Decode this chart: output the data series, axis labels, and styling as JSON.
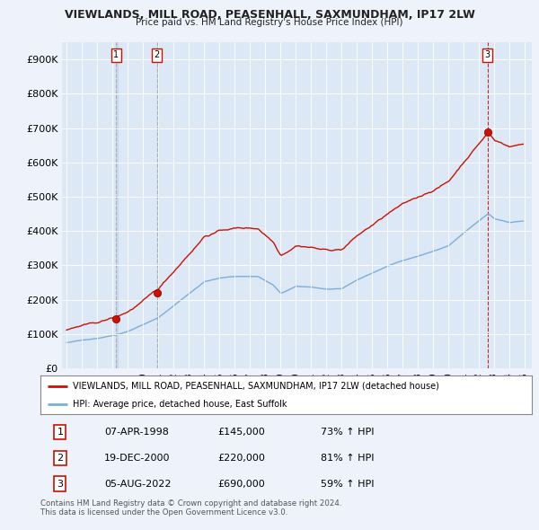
{
  "title": "VIEWLANDS, MILL ROAD, PEASENHALL, SAXMUNDHAM, IP17 2LW",
  "subtitle": "Price paid vs. HM Land Registry's House Price Index (HPI)",
  "background_color": "#eef2fa",
  "plot_bg_color": "#dce8f5",
  "ylim": [
    0,
    950000
  ],
  "yticks": [
    0,
    100000,
    200000,
    300000,
    400000,
    500000,
    600000,
    700000,
    800000,
    900000
  ],
  "ytick_labels": [
    "£0",
    "£100K",
    "£200K",
    "£300K",
    "£400K",
    "£500K",
    "£600K",
    "£700K",
    "£800K",
    "£900K"
  ],
  "sale_prices": [
    145000,
    220000,
    690000
  ],
  "sale_labels": [
    "1",
    "2",
    "3"
  ],
  "hpi_color": "#7aaedb",
  "price_color": "#cc1100",
  "dashed_line_color": "#cc1100",
  "shade_color": "#c8d8ee",
  "legend_label_price": "VIEWLANDS, MILL ROAD, PEASENHALL, SAXMUNDHAM, IP17 2LW (detached house)",
  "legend_label_hpi": "HPI: Average price, detached house, East Suffolk",
  "table_data": [
    [
      "1",
      "07-APR-1998",
      "£145,000",
      "73% ↑ HPI"
    ],
    [
      "2",
      "19-DEC-2000",
      "£220,000",
      "81% ↑ HPI"
    ],
    [
      "3",
      "05-AUG-2022",
      "£690,000",
      "59% ↑ HPI"
    ]
  ],
  "footer": "Contains HM Land Registry data © Crown copyright and database right 2024.\nThis data is licensed under the Open Government Licence v3.0.",
  "xlim_start": 1994.7,
  "xlim_end": 2025.5
}
